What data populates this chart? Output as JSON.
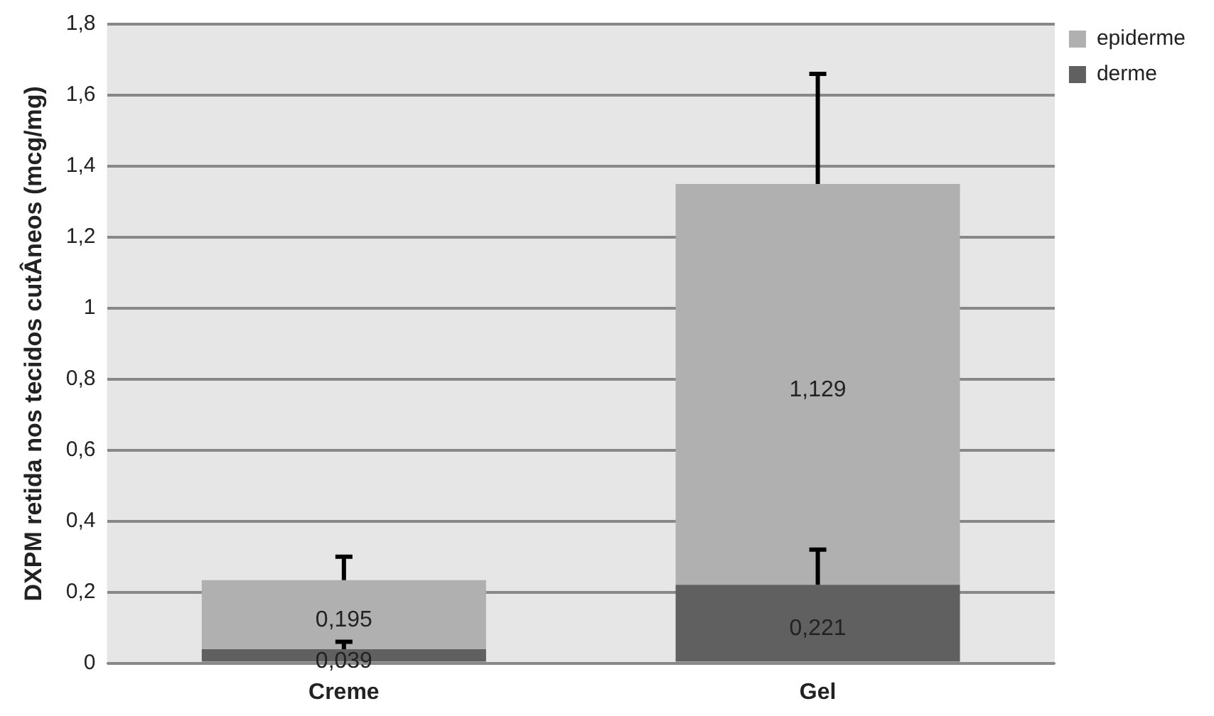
{
  "chart_data": {
    "type": "bar",
    "stacked": true,
    "ylabel": "DXPM retida nos tecidos cutÂneos (mcg/mg)",
    "categories": [
      "Creme",
      "Gel"
    ],
    "series": [
      {
        "name": "derme",
        "color": "#606060",
        "values": [
          0.039,
          0.221
        ],
        "value_labels": [
          "0,039",
          "0,221"
        ],
        "errors": [
          [
            0.039,
            0.06
          ],
          [
            0.221,
            0.32
          ]
        ]
      },
      {
        "name": "epiderme",
        "color": "#b0b0b0",
        "values": [
          0.195,
          1.129
        ],
        "value_labels": [
          "0,195",
          "1,129"
        ],
        "errors": [
          [
            0.234,
            0.3
          ],
          [
            1.35,
            1.66
          ]
        ]
      }
    ],
    "ylim": [
      0,
      1.8
    ],
    "yticks": [
      0,
      {
        "value": 0.2,
        "label": "0,2"
      },
      {
        "value": 0.4,
        "label": "0,4"
      },
      {
        "value": 0.6,
        "label": "0,6"
      },
      {
        "value": 0.8,
        "label": "0,8"
      },
      1,
      {
        "value": 1.2,
        "label": "1,2"
      },
      {
        "value": 1.4,
        "label": "1,4"
      },
      {
        "value": 1.6,
        "label": "1,6"
      },
      {
        "value": 1.8,
        "label": "1,8"
      }
    ],
    "grid": "y",
    "legend": "top right"
  }
}
